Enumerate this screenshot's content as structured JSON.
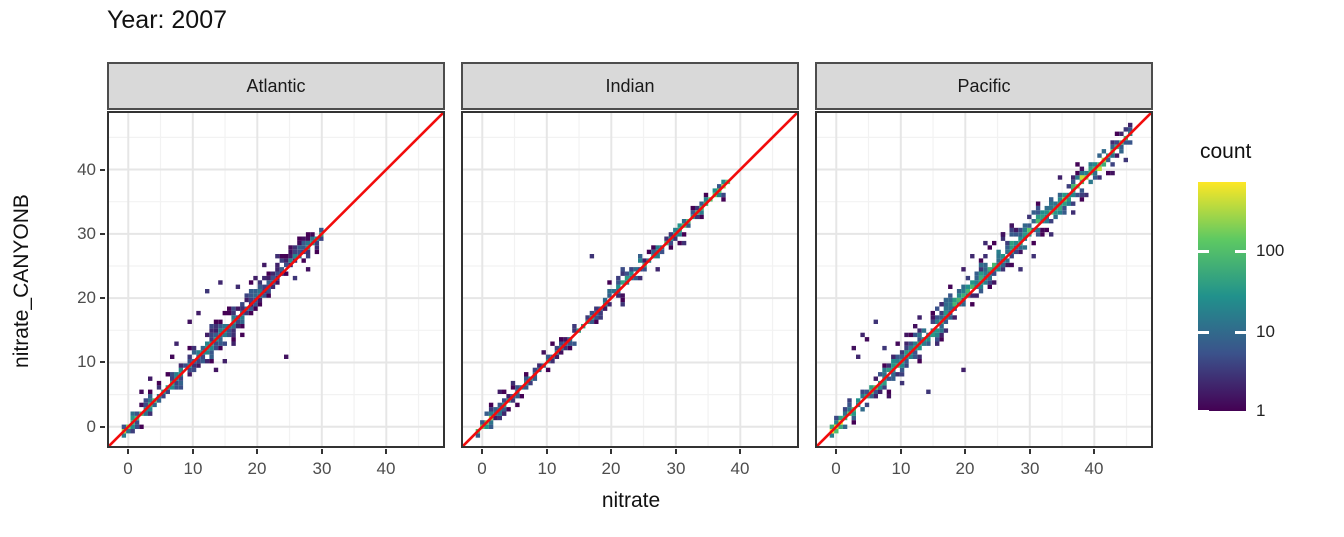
{
  "chart_data": {
    "type": "heatmap",
    "subtype": "faceted-2d-bin-density-scatter",
    "title": "Year: 2007",
    "xlabel": "nitrate",
    "ylabel": "nitrate_CANYONB",
    "xlim": [
      -3.3,
      49.1
    ],
    "ylim": [
      -3.3,
      49.1
    ],
    "x_ticks": [
      0,
      10,
      20,
      30,
      40
    ],
    "y_ticks": [
      0,
      10,
      20,
      30,
      40
    ],
    "minor_gridlines": [
      5,
      15,
      25,
      35,
      45
    ],
    "grid": true,
    "bin_size": 0.68,
    "legend": {
      "title": "count",
      "position": "right",
      "scale": "log10",
      "tick_labels": [
        "100",
        "10",
        "1"
      ],
      "tick_values": [
        100,
        10,
        1
      ],
      "max_count": 700
    },
    "colors": {
      "viridis_stops": [
        [
          0,
          "#440154"
        ],
        [
          0.25,
          "#3b528b"
        ],
        [
          0.5,
          "#21918c"
        ],
        [
          0.75,
          "#5ec962"
        ],
        [
          1,
          "#fde725"
        ]
      ],
      "reference_line": "#f20c0c",
      "panel_border": "#333333",
      "strip_background": "#d9d9d9",
      "major_grid": "#e6e6e6",
      "minor_grid": "#f2f2f2"
    },
    "reference_line": {
      "type": "identity",
      "slope": 1,
      "intercept": 0
    },
    "facets": [
      {
        "label": "Atlantic",
        "seed": 11,
        "diagonal_extent": [
          -0.6,
          30.6
        ],
        "band": [
          {
            "t": [
              -0.6,
              1.2
            ],
            "w": 1,
            "core": 150,
            "off": 0
          },
          {
            "t": [
              1.2,
              5
            ],
            "w": 2,
            "core": 40,
            "off": 0
          },
          {
            "t": [
              5,
              9
            ],
            "w": 2,
            "core": 28,
            "off": 0
          },
          {
            "t": [
              9,
              14
            ],
            "w": 3,
            "core": 15,
            "off": 0
          },
          {
            "t": [
              14,
              19
            ],
            "w": 3,
            "core": 13,
            "off": 0.2
          },
          {
            "t": [
              19,
              23
            ],
            "w": 2,
            "core": 10,
            "off": 0.3
          },
          {
            "t": [
              23,
              27.5
            ],
            "w": 2,
            "core": 8,
            "off": 0.3
          },
          {
            "t": [
              27.5,
              30.6
            ],
            "w": 1,
            "core": 22,
            "off": 0.2
          }
        ],
        "hotspots": [
          [
            0.3,
            0.3,
            200
          ]
        ],
        "outliers": [
          [
            24.8,
            10.7
          ],
          [
            14,
            22.3
          ],
          [
            12.4,
            21
          ],
          [
            9.6,
            16.6
          ],
          [
            6.6,
            11
          ],
          [
            3.4,
            7.6
          ],
          [
            16.6,
            12.9
          ],
          [
            21,
            25
          ],
          [
            23,
            26.6
          ],
          [
            26,
            23.4
          ],
          [
            19.6,
            23.4
          ],
          [
            11,
            17.4
          ],
          [
            2,
            5.4
          ],
          [
            17.3,
            21.8
          ],
          [
            15,
            10.2
          ],
          [
            13.4,
            8.8
          ],
          [
            25.4,
            27.8
          ],
          [
            18,
            14.5
          ],
          [
            7.5,
            13
          ],
          [
            27.9,
            24.5
          ]
        ]
      },
      {
        "label": "Indian",
        "seed": 22,
        "diagonal_extent": [
          -0.8,
          38.2
        ],
        "band": [
          {
            "t": [
              -0.8,
              1.4
            ],
            "w": 1,
            "core": 120,
            "off": 0
          },
          {
            "t": [
              1.4,
              8
            ],
            "w": 1,
            "core": 16,
            "off": 0
          },
          {
            "t": [
              8,
              14
            ],
            "w": 1,
            "core": 13,
            "off": 0
          },
          {
            "t": [
              14,
              19
            ],
            "w": 1,
            "core": 18,
            "off": 0.3
          },
          {
            "t": [
              19,
              24.5
            ],
            "w": 2,
            "core": 20,
            "off": 0.7
          },
          {
            "t": [
              24.5,
              29
            ],
            "w": 1,
            "core": 26,
            "off": 0.3
          },
          {
            "t": [
              29,
              34
            ],
            "w": 1,
            "core": 55,
            "off": 0.2
          },
          {
            "t": [
              34,
              38.2
            ],
            "w": 1,
            "core": 90,
            "off": 0
          }
        ],
        "hotspots": [
          [
            0.2,
            0.2,
            160
          ],
          [
            36.5,
            36.8,
            130
          ]
        ],
        "outliers": [
          [
            17,
            26.6
          ],
          [
            21.5,
            18.8
          ],
          [
            27.5,
            24.6
          ],
          [
            9.3,
            11.8
          ],
          [
            4.5,
            7
          ],
          [
            2.7,
            5.2
          ],
          [
            31.5,
            28.3
          ]
        ]
      },
      {
        "label": "Pacific",
        "seed": 33,
        "diagonal_extent": [
          -0.6,
          46.2
        ],
        "band": [
          {
            "t": [
              -0.6,
              1.4
            ],
            "w": 2,
            "core": 320,
            "off": 0
          },
          {
            "t": [
              1.4,
              7
            ],
            "w": 2,
            "core": 55,
            "off": 0
          },
          {
            "t": [
              7,
              12
            ],
            "w": 3,
            "core": 35,
            "off": 0
          },
          {
            "t": [
              12,
              17
            ],
            "w": 3,
            "core": 30,
            "off": 0
          },
          {
            "t": [
              17,
              22
            ],
            "w": 3,
            "core": 30,
            "off": 0.3
          },
          {
            "t": [
              22,
              28
            ],
            "w": 4,
            "core": 28,
            "off": 0.8
          },
          {
            "t": [
              28,
              33
            ],
            "w": 3,
            "core": 45,
            "off": 0.3
          },
          {
            "t": [
              33,
              37
            ],
            "w": 3,
            "core": 70,
            "off": 0
          },
          {
            "t": [
              37,
              42
            ],
            "w": 2,
            "core": 170,
            "off": 0
          },
          {
            "t": [
              42,
              46.2
            ],
            "w": 2,
            "core": 45,
            "off": 0
          }
        ],
        "hotspots": [
          [
            0.3,
            0.3,
            480
          ],
          [
            38.4,
            38.6,
            420
          ],
          [
            40.6,
            40.4,
            380
          ],
          [
            41.6,
            41.6,
            300
          ]
        ],
        "outliers": [
          [
            2.5,
            12
          ],
          [
            5,
            13.5
          ],
          [
            7.5,
            12.5
          ],
          [
            9.2,
            13.2
          ],
          [
            11,
            14.2
          ],
          [
            3.2,
            11
          ],
          [
            13,
            16.8
          ],
          [
            12,
            15.4
          ],
          [
            20,
            8.6
          ],
          [
            14.6,
            5.6
          ],
          [
            18,
            21.5
          ],
          [
            16,
            19
          ],
          [
            23.4,
            28.8
          ],
          [
            21,
            26.2
          ],
          [
            25.5,
            30
          ],
          [
            19.5,
            24.2
          ],
          [
            27,
            31
          ],
          [
            10,
            7
          ],
          [
            8,
            4.8
          ],
          [
            30.5,
            26.5
          ],
          [
            33,
            29.6
          ],
          [
            36.8,
            33.4
          ],
          [
            39,
            35.8
          ],
          [
            35,
            38.8
          ],
          [
            37.6,
            41
          ],
          [
            43,
            39.6
          ],
          [
            44.6,
            41.4
          ],
          [
            28.8,
            24.4
          ],
          [
            6,
            16.2
          ],
          [
            4,
            14.6
          ]
        ]
      }
    ]
  }
}
